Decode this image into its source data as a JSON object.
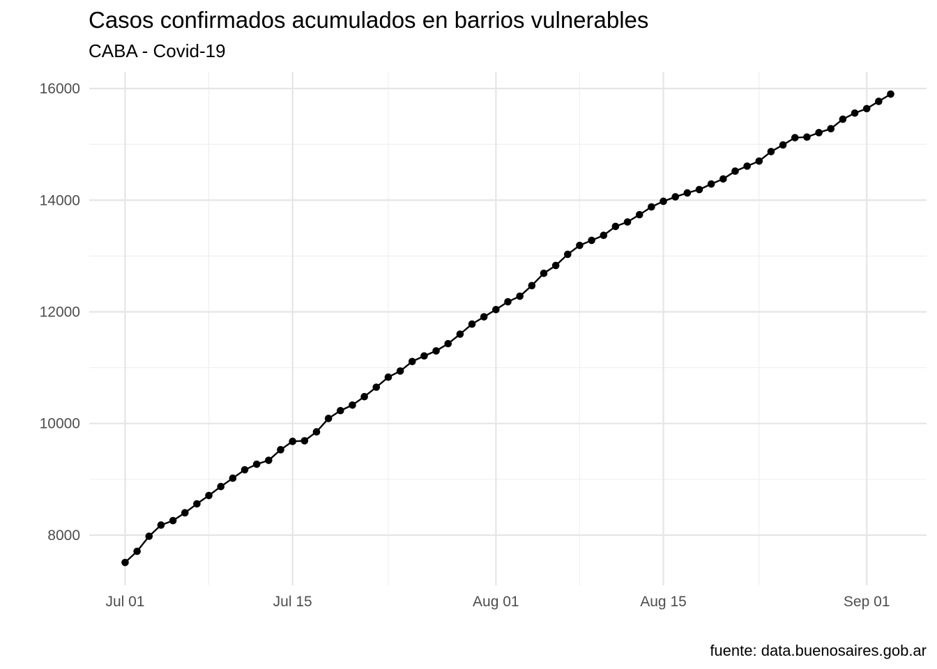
{
  "chart_data": {
    "type": "line",
    "title": "Casos confirmados acumulados en barrios vulnerables",
    "subtitle": "CABA - Covid-19",
    "caption": "fuente: data.buenosaires.gob.ar",
    "xlabel": "",
    "ylabel": "",
    "x_type": "date",
    "x_ticks": [
      {
        "date": "2020-07-01",
        "label": "Jul 01"
      },
      {
        "date": "2020-07-15",
        "label": "Jul 15"
      },
      {
        "date": "2020-08-01",
        "label": "Aug 01"
      },
      {
        "date": "2020-08-15",
        "label": "Aug 15"
      },
      {
        "date": "2020-09-01",
        "label": "Sep 01"
      }
    ],
    "x_minor_ticks": [
      "2020-07-08",
      "2020-07-23",
      "2020-08-08",
      "2020-08-23"
    ],
    "y_ticks": [
      8000,
      10000,
      12000,
      14000,
      16000
    ],
    "y_minor_ticks": [
      9000,
      11000,
      13000,
      15000
    ],
    "xlim": [
      "2020-06-28",
      "2020-09-06"
    ],
    "ylim": [
      7100,
      16300
    ],
    "grid": true,
    "line_color": "#000000",
    "point_color": "#000000",
    "series": [
      {
        "x": [
          "2020-07-01",
          "2020-07-02",
          "2020-07-03",
          "2020-07-04",
          "2020-07-05",
          "2020-07-06",
          "2020-07-07",
          "2020-07-08",
          "2020-07-09",
          "2020-07-10",
          "2020-07-11",
          "2020-07-12",
          "2020-07-13",
          "2020-07-14",
          "2020-07-15",
          "2020-07-16",
          "2020-07-17",
          "2020-07-18",
          "2020-07-19",
          "2020-07-20",
          "2020-07-21",
          "2020-07-22",
          "2020-07-23",
          "2020-07-24",
          "2020-07-25",
          "2020-07-26",
          "2020-07-27",
          "2020-07-28",
          "2020-07-29",
          "2020-07-30",
          "2020-07-31",
          "2020-08-01",
          "2020-08-02",
          "2020-08-03",
          "2020-08-04",
          "2020-08-05",
          "2020-08-06",
          "2020-08-07",
          "2020-08-08",
          "2020-08-09",
          "2020-08-10",
          "2020-08-11",
          "2020-08-12",
          "2020-08-13",
          "2020-08-14",
          "2020-08-15",
          "2020-08-16",
          "2020-08-17",
          "2020-08-18",
          "2020-08-19",
          "2020-08-20",
          "2020-08-21",
          "2020-08-22",
          "2020-08-23",
          "2020-08-24",
          "2020-08-25",
          "2020-08-26",
          "2020-08-27",
          "2020-08-28",
          "2020-08-29",
          "2020-08-30",
          "2020-08-31",
          "2020-09-01",
          "2020-09-02",
          "2020-09-03"
        ],
        "y": [
          7510,
          7710,
          7980,
          8180,
          8260,
          8400,
          8560,
          8710,
          8870,
          9020,
          9170,
          9270,
          9340,
          9530,
          9680,
          9690,
          9850,
          10090,
          10230,
          10330,
          10480,
          10650,
          10830,
          10940,
          11110,
          11210,
          11300,
          11430,
          11600,
          11780,
          11910,
          12040,
          12180,
          12280,
          12470,
          12690,
          12830,
          13030,
          13190,
          13280,
          13370,
          13530,
          13610,
          13740,
          13880,
          13980,
          14060,
          14130,
          14190,
          14290,
          14380,
          14520,
          14610,
          14700,
          14870,
          14990,
          15120,
          15130,
          15210,
          15280,
          15450,
          15560,
          15640,
          15770,
          15900
        ]
      }
    ]
  }
}
